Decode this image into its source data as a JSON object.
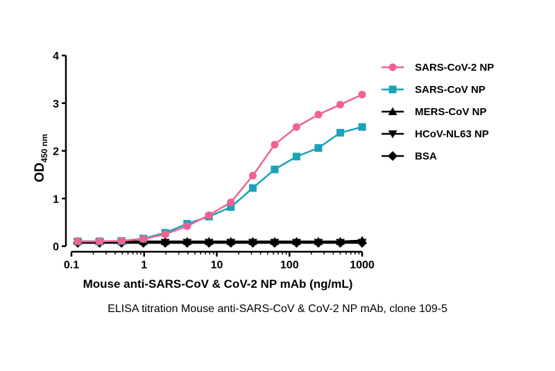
{
  "chart_data": {
    "type": "line",
    "x_scale": "log",
    "xlim": [
      0.1,
      1000
    ],
    "ylim": [
      0,
      4
    ],
    "x_ticks": [
      0.1,
      1,
      10,
      100,
      1000
    ],
    "x_tick_labels": [
      "0.1",
      "1",
      "10",
      "100",
      "1000"
    ],
    "y_ticks": [
      0,
      1,
      2,
      3,
      4
    ],
    "y_tick_labels": [
      "0",
      "1",
      "2",
      "3",
      "4"
    ],
    "xlabel": "Mouse anti-SARS-CoV & CoV-2 NP mAb (ng/mL)",
    "ylabel_main": "OD",
    "ylabel_sub": "450 nm",
    "legend_position": "right",
    "grid": false,
    "x": [
      0.122,
      0.244,
      0.488,
      0.977,
      1.95,
      3.91,
      7.81,
      15.6,
      31.3,
      62.5,
      125,
      250,
      500,
      1000
    ],
    "series": [
      {
        "name": "SARS-CoV-2 NP",
        "color": "#f06292",
        "marker": "circle",
        "values": [
          0.1,
          0.1,
          0.11,
          0.15,
          0.25,
          0.42,
          0.65,
          0.92,
          1.48,
          2.13,
          2.5,
          2.76,
          2.97,
          3.18
        ]
      },
      {
        "name": "SARS-CoV NP",
        "color": "#1aa3b8",
        "marker": "square",
        "values": [
          0.1,
          0.1,
          0.11,
          0.16,
          0.28,
          0.47,
          0.62,
          0.82,
          1.22,
          1.61,
          1.88,
          2.06,
          2.38,
          2.5
        ]
      },
      {
        "name": "MERS-CoV NP",
        "color": "#000000",
        "marker": "triangle-up",
        "values": [
          0.1,
          0.1,
          0.1,
          0.1,
          0.1,
          0.1,
          0.1,
          0.1,
          0.1,
          0.1,
          0.1,
          0.1,
          0.1,
          0.12
        ]
      },
      {
        "name": "HCoV-NL63 NP",
        "color": "#000000",
        "marker": "triangle-down",
        "values": [
          0.08,
          0.08,
          0.08,
          0.08,
          0.08,
          0.08,
          0.08,
          0.08,
          0.08,
          0.08,
          0.08,
          0.08,
          0.08,
          0.08
        ]
      },
      {
        "name": "BSA",
        "color": "#000000",
        "marker": "diamond",
        "values": [
          0.07,
          0.07,
          0.07,
          0.07,
          0.07,
          0.07,
          0.07,
          0.07,
          0.07,
          0.07,
          0.07,
          0.07,
          0.07,
          0.07
        ]
      }
    ]
  },
  "caption": "ELISA titration Mouse anti-SARS-CoV & CoV-2 NP mAb, clone 109-5"
}
